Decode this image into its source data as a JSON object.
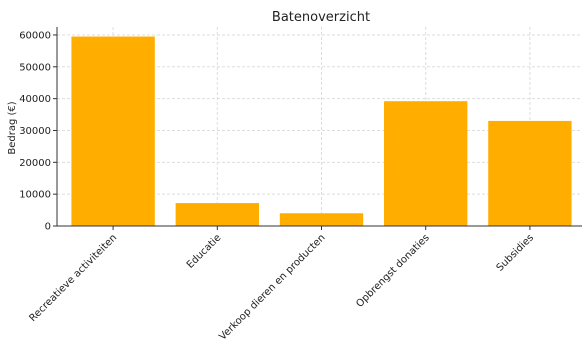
{
  "chart_data": {
    "type": "bar",
    "title": "Batenoverzicht",
    "xlabel": "",
    "ylabel": "Bedrag (€)",
    "categories": [
      "Recreatieve activiteiten",
      "Educatie",
      "Verkoop dieren en producten",
      "Opbrengst donaties",
      "Subsidies"
    ],
    "values": [
      59500,
      7200,
      4000,
      39200,
      33000
    ],
    "ylim": [
      0,
      62500
    ],
    "yticks": [
      0,
      10000,
      20000,
      30000,
      40000,
      50000,
      60000
    ],
    "ytick_labels": [
      "0",
      "10000",
      "20000",
      "30000",
      "40000",
      "50000",
      "60000"
    ],
    "grid": true,
    "colors": {
      "bar": "#FFAE00"
    }
  }
}
